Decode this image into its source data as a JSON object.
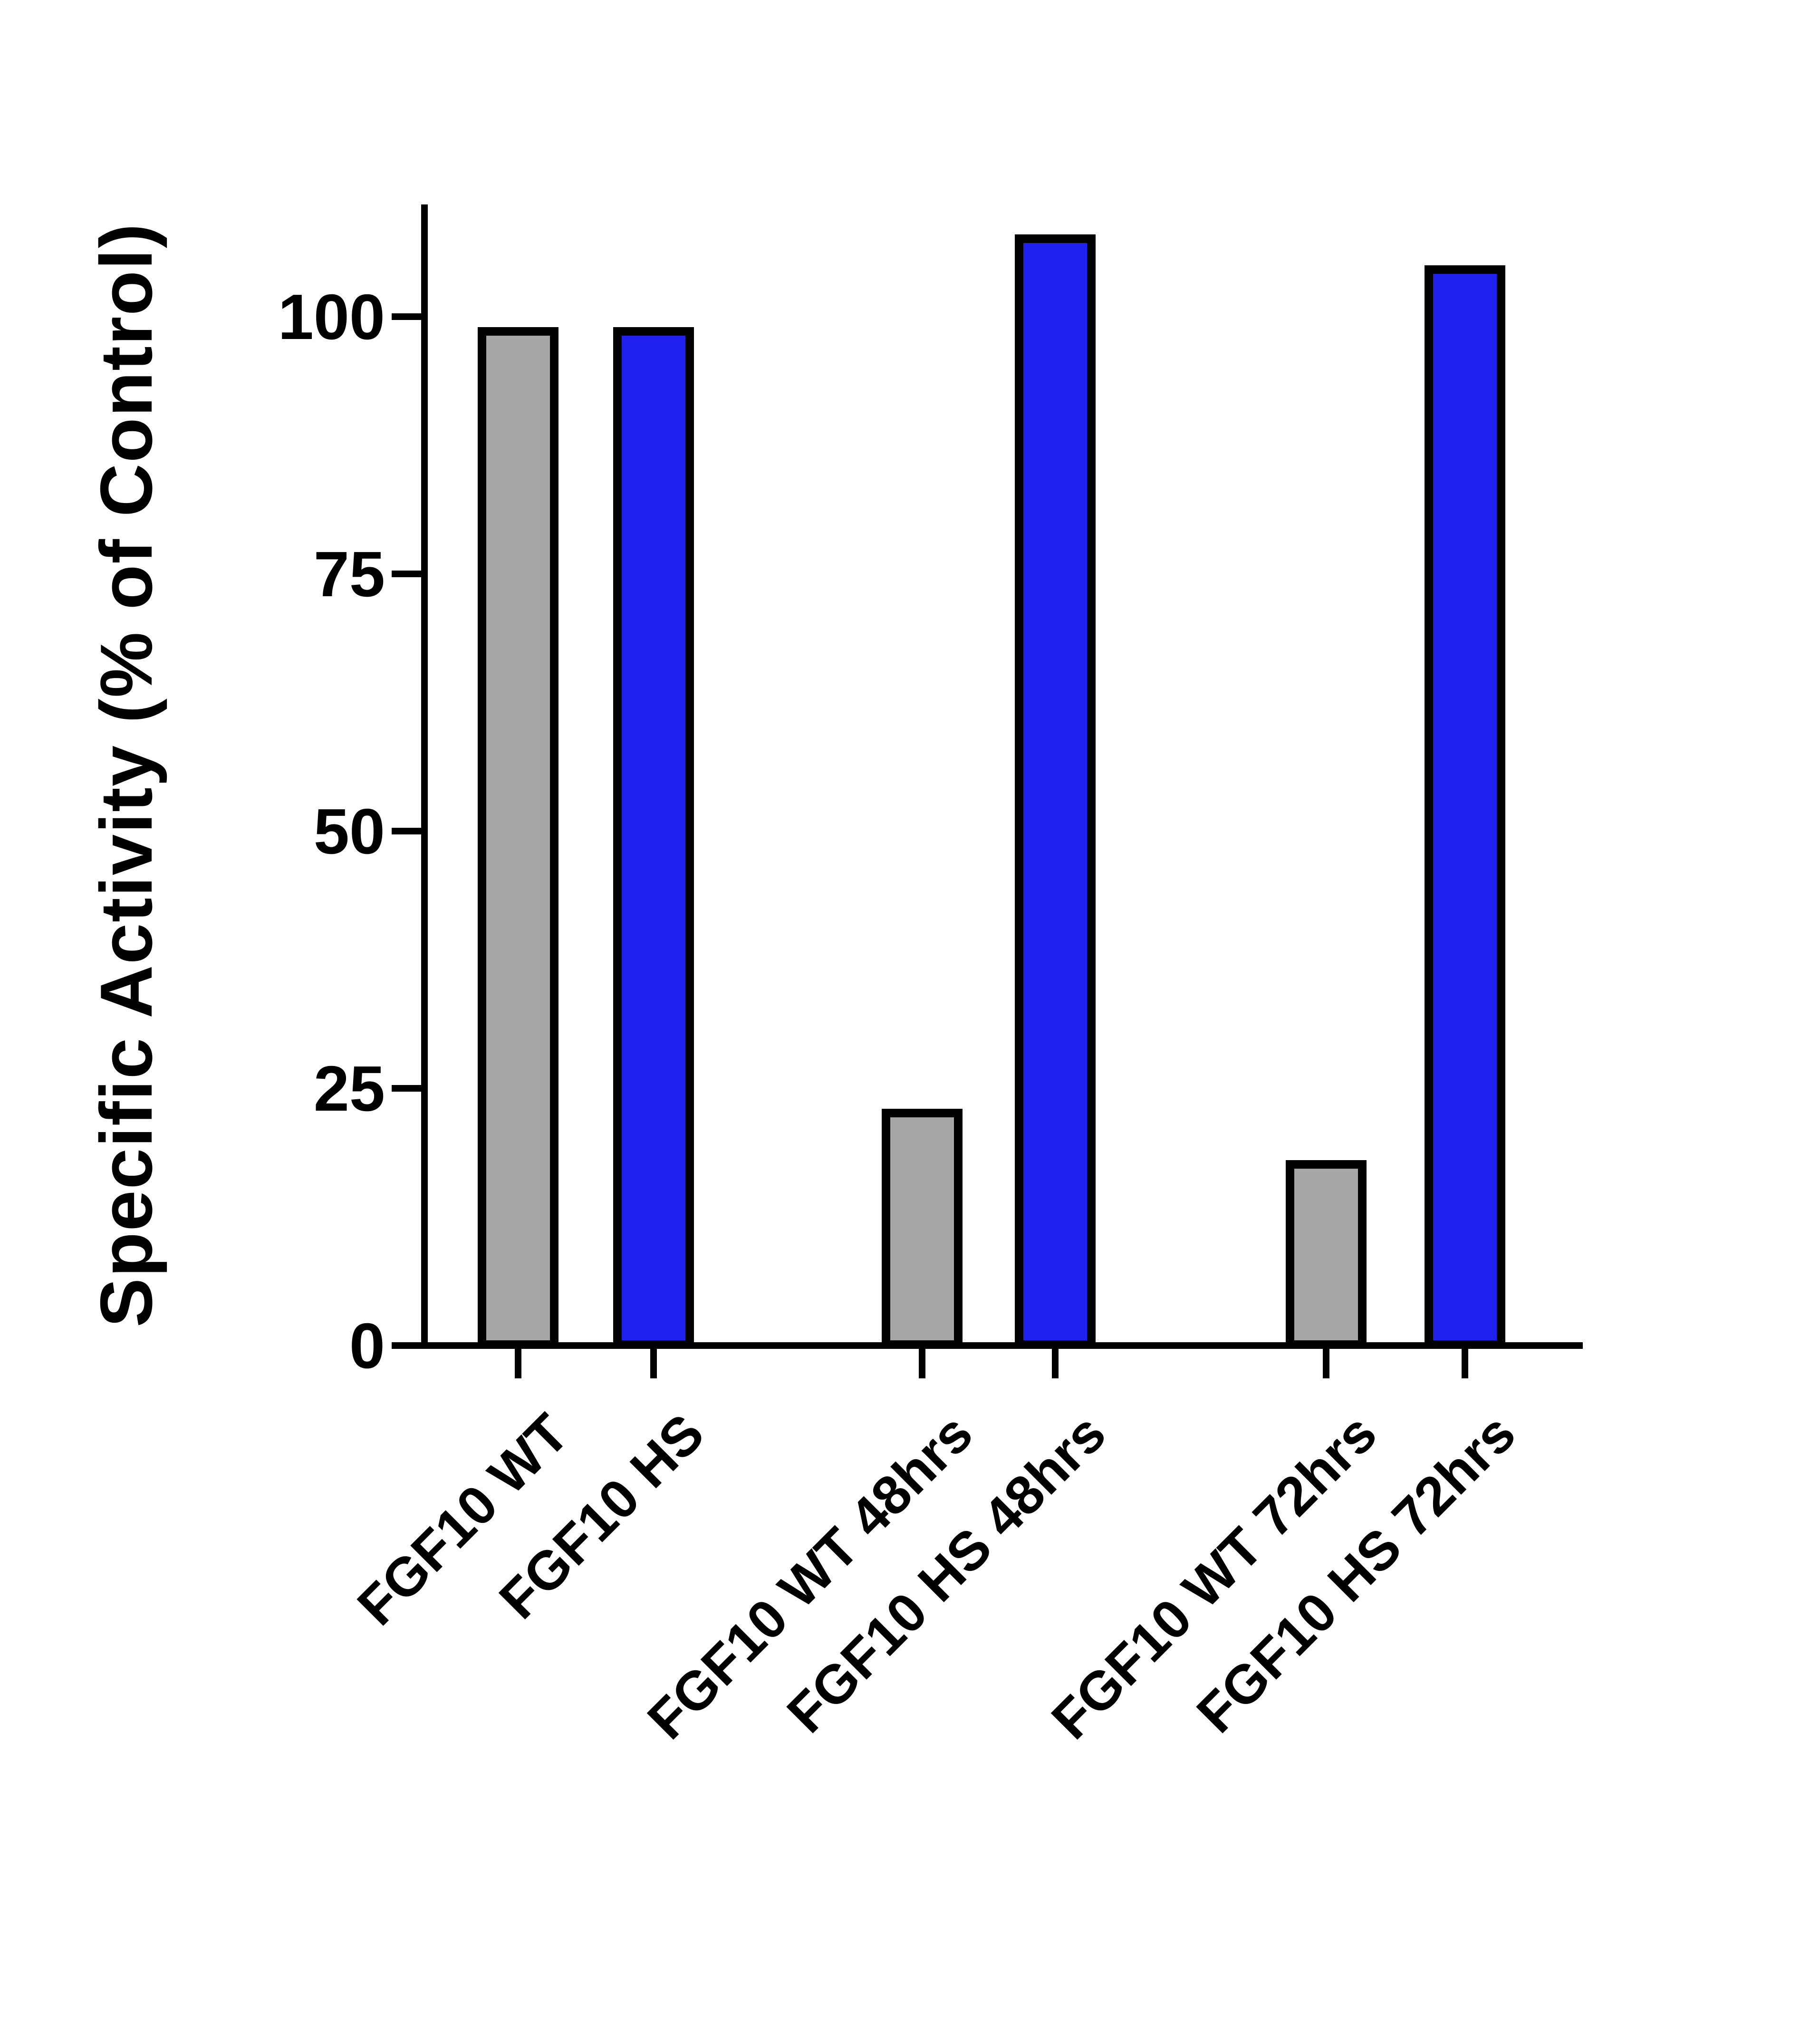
{
  "chart_data": {
    "type": "bar",
    "title": "",
    "xlabel": "",
    "ylabel": "Specific Activity (% of Control)",
    "ylim": [
      0,
      111
    ],
    "yticks": [
      0,
      25,
      50,
      75,
      100
    ],
    "grid": false,
    "legend": null,
    "categories": [
      "FGF10 WT",
      "FGF10 HS",
      "FGF10 WT 48hrs",
      "FGF10 HS 48hrs",
      "FGF10 WT 72hrs",
      "FGF10 HS 72hrs"
    ],
    "values": [
      99,
      99,
      23,
      108,
      18,
      105
    ],
    "bar_colors": [
      "#A6A6A6",
      "#2121EF",
      "#A6A6A6",
      "#2121EF",
      "#A6A6A6",
      "#2121EF"
    ],
    "colors": {
      "gray_bar": "#A6A6A6",
      "blue_bar": "#2121EF",
      "axis": "#000000",
      "background": "#FFFFFF"
    }
  }
}
